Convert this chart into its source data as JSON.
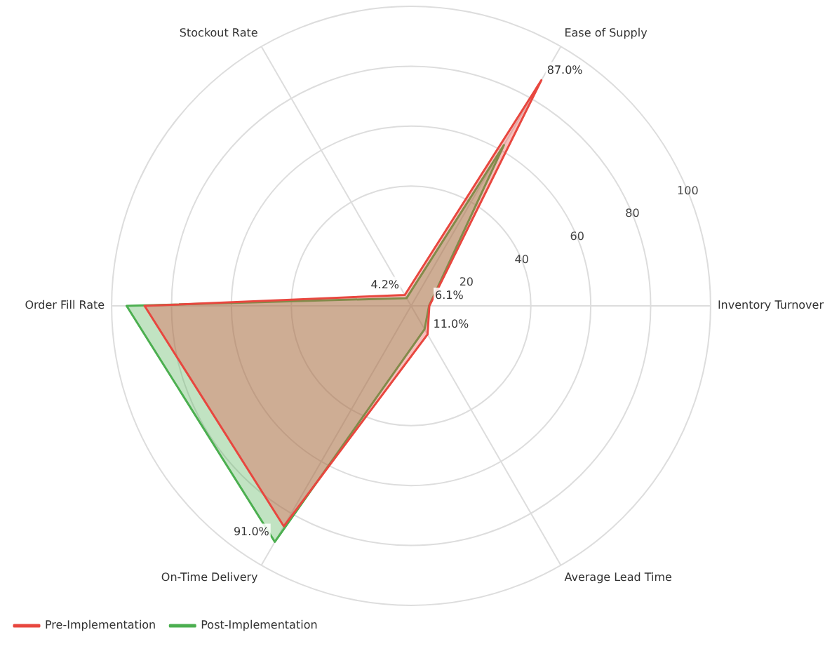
{
  "chart_data": {
    "type": "radar",
    "categories": [
      "Ease of Supply",
      "Inventory Turnover",
      "Average Lead Time",
      "On-Time Delivery",
      "Order Fill Rate",
      "Stockout Rate"
    ],
    "series": [
      {
        "name": "Pre-Implementation",
        "color": "#e8473f",
        "values": [
          87,
          6.1,
          11,
          85,
          89,
          4.2
        ],
        "value_labels": [
          "87.0%",
          "6.1%",
          "11.0%",
          null,
          null,
          "4.2%"
        ]
      },
      {
        "name": "Post-Implementation",
        "color": "#4caf50",
        "values": [
          62,
          6,
          9,
          91,
          95,
          3
        ],
        "value_labels": [
          null,
          null,
          null,
          "91.0%",
          null,
          null
        ]
      }
    ],
    "ylim": [
      0,
      100
    ],
    "yticks": [
      20,
      40,
      60,
      80,
      100
    ],
    "grid": true,
    "legend": "bottom left",
    "marker": "none",
    "line_style": "solid"
  }
}
